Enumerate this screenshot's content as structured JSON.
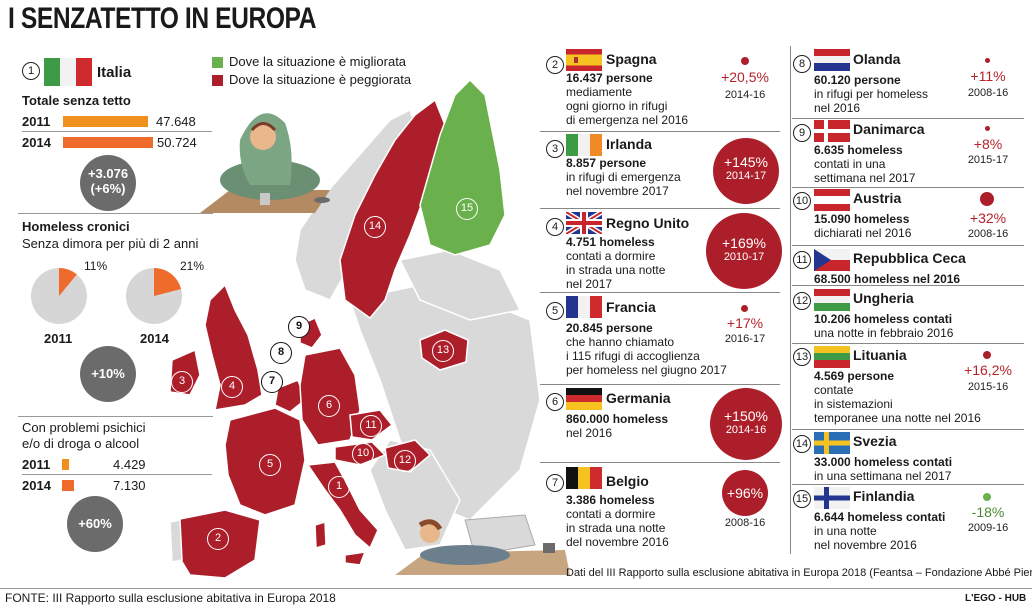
{
  "title": "I SENZATETTO IN EUROPA",
  "legend": {
    "improved": "Dove la situazione è migliorata",
    "worsened": "Dove la situazione è peggiorata",
    "improved_color": "#6ab04c",
    "worsened_color": "#ac1f2a"
  },
  "italia": {
    "num": "1",
    "name": "Italia",
    "total_title": "Totale senza tetto",
    "rows": [
      {
        "year": "2011",
        "value": "47.648",
        "amount": 47648
      },
      {
        "year": "2014",
        "value": "50.724",
        "amount": 50724
      }
    ],
    "delta_abs": "+3.076",
    "delta_pct": "(+6%)",
    "chronic_title": "Homeless cronici",
    "chronic_sub": "Senza dimora per più di 2 anni",
    "pies": [
      {
        "year": "2011",
        "pct_label": "11%",
        "pct": 11
      },
      {
        "year": "2014",
        "pct_label": "21%",
        "pct": 21
      }
    ],
    "chronic_delta": "+10%",
    "psych_title_1": "Con problemi psichici",
    "psych_title_2": "e/o di droga o alcool",
    "psych_rows": [
      {
        "year": "2011",
        "value": "4.429",
        "amount": 4429
      },
      {
        "year": "2014",
        "value": "7.130",
        "amount": 7130
      }
    ],
    "psych_delta": "+60%"
  },
  "countries_mid": [
    {
      "num": "2",
      "name": "Spagna",
      "lines": [
        "16.437 persone",
        "mediamente",
        "ogni giorno in rifugi",
        "di emergenza nel 2016"
      ],
      "bold_prefix": "16.437",
      "pct": "+20,5%",
      "years": "2014-16",
      "circle": "dot"
    },
    {
      "num": "3",
      "name": "Irlanda",
      "lines": [
        "8.857 persone",
        "in rifugi di emergenza",
        "nel novembre 2017"
      ],
      "bold_prefix": "8.857",
      "pct": "+145%",
      "years": "2014-17",
      "circle": "big"
    },
    {
      "num": "4",
      "name": "Regno Unito",
      "lines": [
        "4.751 homeless",
        "contati a dormire",
        "in strada una notte",
        "nel 2017"
      ],
      "bold_prefix": "4.751",
      "pct": "+169%",
      "years": "2010-17",
      "circle": "big"
    },
    {
      "num": "5",
      "name": "Francia",
      "lines": [
        "20.845 persone",
        "che hanno chiamato",
        "i 115 rifugi di accoglienza",
        "per homeless nel giugno 2017"
      ],
      "bold_prefix": "20.845",
      "pct": "+17%",
      "years": "2016-17",
      "circle": "dot"
    },
    {
      "num": "6",
      "name": "Germania",
      "lines": [
        "860.000 homeless",
        "nel 2016"
      ],
      "bold_prefix": "860.000",
      "pct": "+150%",
      "years": "2014-16",
      "circle": "big"
    },
    {
      "num": "7",
      "name": "Belgio",
      "lines": [
        "3.386 homeless",
        "contati a dormire",
        "in strada una notte",
        "del novembre 2016"
      ],
      "bold_prefix": "3.386",
      "pct": "+96%",
      "years": "2008-16",
      "circle": "mid"
    }
  ],
  "countries_right": [
    {
      "num": "8",
      "name": "Olanda",
      "lines": [
        "60.120 persone",
        "in rifugi per homeless",
        "nel 2016"
      ],
      "bold_prefix": "60.120",
      "pct": "+11%",
      "years": "2008-16",
      "circle": "dot"
    },
    {
      "num": "9",
      "name": "Danimarca",
      "lines": [
        "6.635 homeless",
        "contati in una",
        "settimana nel 2017"
      ],
      "bold_prefix": "6.635",
      "pct": "+8%",
      "years": "2015-17",
      "circle": "dot"
    },
    {
      "num": "10",
      "name": "Austria",
      "lines": [
        "15.090 homeless",
        "dichiarati nel 2016"
      ],
      "bold_prefix": "15.090",
      "pct": "+32%",
      "years": "2008-16",
      "circle": "dotbig"
    },
    {
      "num": "11",
      "name": "Repubblica Ceca",
      "lines": [
        "68.500 homeless nel 2016"
      ],
      "bold_prefix": "68.500",
      "pct": "",
      "years": "",
      "circle": "none"
    },
    {
      "num": "12",
      "name": "Ungheria",
      "lines": [
        "10.206 homeless contati",
        "una notte in febbraio 2016"
      ],
      "bold_prefix": "10.206",
      "pct": "",
      "years": "",
      "circle": "none"
    },
    {
      "num": "13",
      "name": "Lituania",
      "lines": [
        "4.569 persone",
        "contate",
        "in sistemazioni",
        "temporanee una notte nel 2016"
      ],
      "bold_prefix": "4.569",
      "pct": "+16,2%",
      "years": "2015-16",
      "circle": "dot"
    },
    {
      "num": "14",
      "name": "Svezia",
      "lines": [
        "33.000 homeless contati",
        "in una settimana nel 2017"
      ],
      "bold_prefix": "33.000",
      "pct": "",
      "years": "",
      "circle": "none"
    },
    {
      "num": "15",
      "name": "Finlandia",
      "lines": [
        "6.644 homeless contati",
        "in una notte",
        "nel novembre 2016"
      ],
      "bold_prefix": "6.644",
      "pct": "-18%",
      "years": "2009-16",
      "circle": "green"
    }
  ],
  "map_labels": [
    "1",
    "2",
    "3",
    "4",
    "5",
    "6",
    "7",
    "8",
    "9",
    "10",
    "11",
    "12",
    "13",
    "14",
    "15"
  ],
  "data_note": "Dati del III Rapporto sulla esclusione abitativa in Europa 2018 (Feantsa – Fondazione Abbé Pierre)",
  "source": "FONTE: III Rapporto sulla esclusione abitativa in Europa 2018",
  "credit": "L'EGO - HUB"
}
